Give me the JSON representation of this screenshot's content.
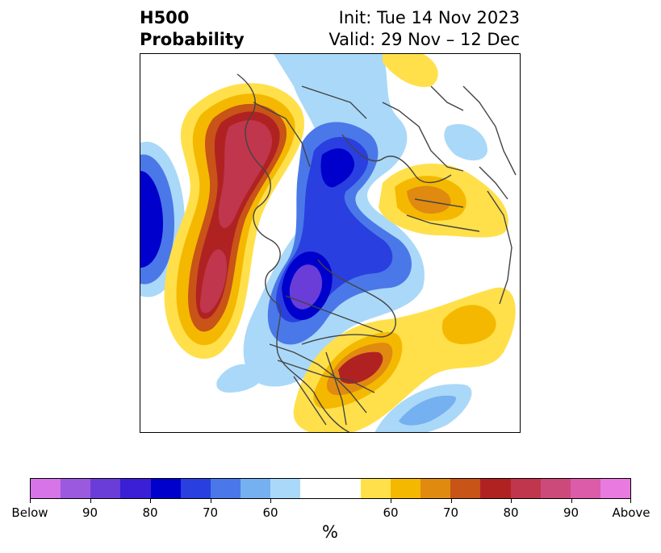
{
  "header": {
    "title_line1": "H500",
    "title_line2": "Probability",
    "init_label": "Init: Tue 14 Nov 2023",
    "valid_label": "Valid: 29 Nov – 12 Dec"
  },
  "colorbar": {
    "unit": "%",
    "colors": [
      "#d674e8",
      "#9b59e0",
      "#6a3dd8",
      "#3a1fd6",
      "#0000cc",
      "#2a3fe0",
      "#4a78e8",
      "#75b0f0",
      "#aad8f8",
      "#ffffff",
      "#ffffff",
      "#ffe04a",
      "#f5b800",
      "#e08a10",
      "#c85418",
      "#b02222",
      "#c0364c",
      "#cc4a7a",
      "#dc5caa",
      "#e87ae0"
    ],
    "ticks": [
      "Below",
      "90",
      "80",
      "70",
      "60",
      "60",
      "70",
      "80",
      "90",
      "Above"
    ]
  },
  "colors": {
    "land_outline": "#444444"
  }
}
